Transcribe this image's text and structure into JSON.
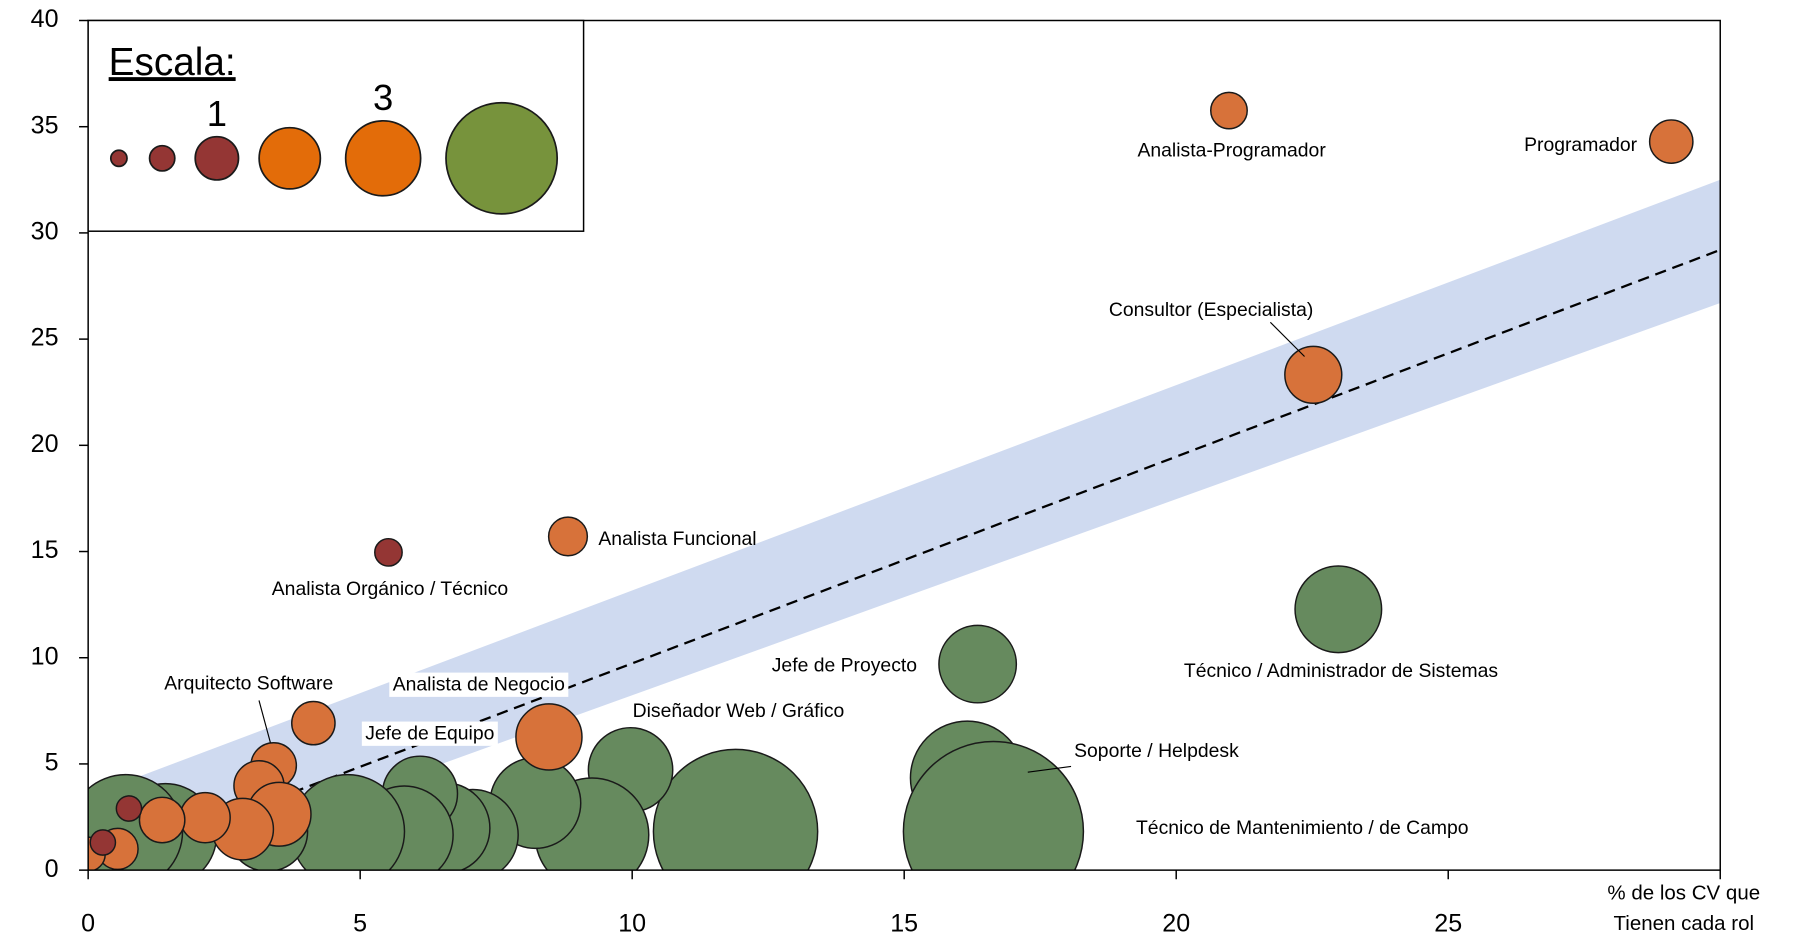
{
  "chart_data": {
    "type": "bubble",
    "xlim": [
      0,
      30
    ],
    "ylim": [
      0,
      40
    ],
    "xticks": [
      0,
      5,
      10,
      15,
      20,
      25
    ],
    "yticks": [
      0,
      5,
      10,
      15,
      20,
      25,
      30,
      35,
      40
    ],
    "xlabel_lines": [
      "% de los CV que",
      "Tienen cada rol"
    ],
    "band": {
      "x": [
        0,
        30
      ],
      "upper": [
        3.5,
        32.5
      ],
      "lower": [
        -1,
        26.7
      ],
      "color": "#cfdaf0"
    },
    "trend": {
      "x": [
        0,
        30
      ],
      "y": [
        0,
        29.2
      ]
    },
    "legend": {
      "title": "Escala:",
      "sizes": [
        0.14,
        0.34,
        1,
        2,
        3,
        6.6
      ],
      "size_labels": [
        null,
        null,
        "1",
        null,
        "3",
        null
      ],
      "colors": [
        "#943634",
        "#943634",
        "#943634",
        "#e36c09",
        "#e36c09",
        "#77933c"
      ]
    },
    "series": [
      {
        "color": "#668a5e",
        "x": [
          22.98,
          16.35,
          16.16,
          16.64,
          11.9,
          9.97,
          9.26,
          8.22,
          7.07,
          6.55,
          6.1,
          5.81,
          4.77,
          3.3,
          1.42,
          0.69
        ],
        "y": [
          12.28,
          9.7,
          4.34,
          1.82,
          1.82,
          4.72,
          1.66,
          3.16,
          1.66,
          1.98,
          3.6,
          1.66,
          1.82,
          1.82,
          1.66,
          1.82
        ],
        "sizes": [
          4,
          3.2,
          6.9,
          17.3,
          14.4,
          3.8,
          6.9,
          4.4,
          4.4,
          4.4,
          3,
          5.1,
          6.9,
          3.4,
          5.6,
          6.9
        ],
        "labels": [
          "Técnico / Administrador de Sistemas",
          "Jefe de Proyecto",
          "Soporte / Helpdesk",
          "Técnico de Mantenimiento / de Campo",
          "Diseñador Web / Gráfico",
          null,
          null,
          null,
          null,
          null,
          null,
          null,
          null,
          null,
          null,
          null
        ]
      },
      {
        "color": "#d7723a",
        "x": [
          20.97,
          29.1,
          22.52,
          8.82,
          3.41,
          4.14,
          8.47,
          3.14,
          3.51,
          2.84,
          2.15,
          1.36,
          0.54,
          0
        ],
        "y": [
          35.76,
          34.3,
          23.32,
          15.71,
          4.93,
          6.92,
          6.27,
          3.97,
          2.63,
          1.93,
          2.47,
          2.36,
          1.0,
          0.75
        ],
        "sizes": [
          0.71,
          1,
          1.73,
          0.8,
          1.1,
          1,
          2.33,
          1.34,
          2.17,
          2.02,
          1.34,
          1.1,
          0.9,
          0.62
        ],
        "labels": [
          "Analista-Programador",
          "Programador",
          "Consultor (Especialista)",
          "Analista Funcional",
          "Arquitecto Software",
          "Analista de Negocio",
          "Jefe de Equipo",
          null,
          null,
          null,
          null,
          null,
          null,
          null
        ]
      },
      {
        "color": "#943634",
        "x": [
          5.52,
          0.75,
          0.27
        ],
        "y": [
          14.96,
          2.9,
          1.3
        ],
        "sizes": [
          0.4,
          0.34,
          0.34
        ],
        "labels": [
          "Analista Orgánico / Técnico",
          null,
          null
        ]
      }
    ]
  }
}
